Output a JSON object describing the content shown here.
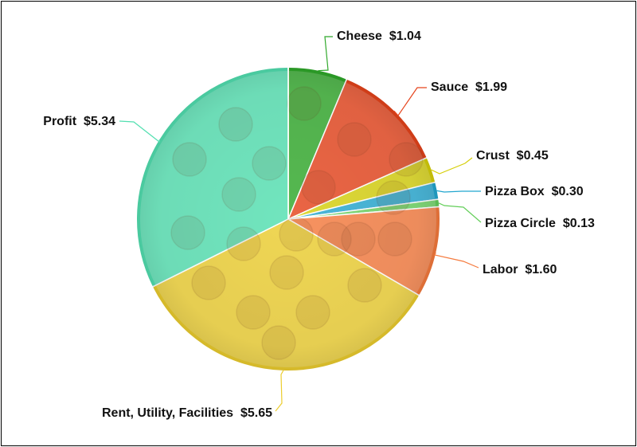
{
  "chart_data": {
    "type": "pie",
    "title": "",
    "start_angle_deg": 0,
    "direction": "clockwise",
    "slices": [
      {
        "key": "cheese",
        "name": "Cheese",
        "value": 1.04,
        "value_label": "$1.04",
        "color": "#2fa82a"
      },
      {
        "key": "sauce",
        "name": "Sauce",
        "value": 1.99,
        "value_label": "$1.99",
        "color": "#e5431b"
      },
      {
        "key": "crust",
        "name": "Crust",
        "value": 0.45,
        "value_label": "$0.45",
        "color": "#d6cf0a"
      },
      {
        "key": "pizza_box",
        "name": "Pizza Box",
        "value": 0.3,
        "value_label": "$0.30",
        "color": "#22a6cf"
      },
      {
        "key": "pizza_circle",
        "name": "Pizza Circle",
        "value": 0.13,
        "value_label": "$0.13",
        "color": "#64cf5a"
      },
      {
        "key": "labor",
        "name": "Labor",
        "value": 1.6,
        "value_label": "$1.60",
        "color": "#f57a3d"
      },
      {
        "key": "rent",
        "name": "Rent, Utility, Facilities",
        "value": 5.65,
        "value_label": "$5.65",
        "color": "#eccd2e"
      },
      {
        "key": "profit",
        "name": "Profit",
        "value": 5.34,
        "value_label": "$5.34",
        "color": "#52dfb0"
      }
    ]
  }
}
